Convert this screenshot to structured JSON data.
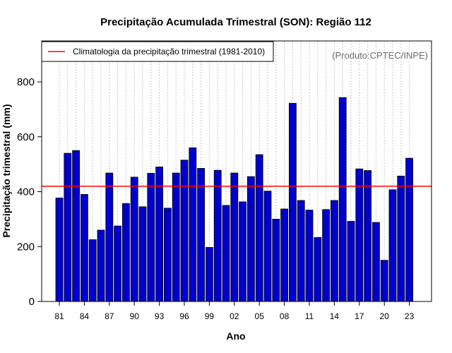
{
  "chart_data": {
    "type": "bar",
    "title": "Precipitação Acumulada Trimestral (SON): Região 112",
    "xlabel": "Ano",
    "ylabel": "Precipitação trimestral (mm)",
    "ylim": [
      0,
      920
    ],
    "yticks": [
      0,
      200,
      400,
      600,
      800
    ],
    "categories": [
      "1981",
      "1982",
      "1983",
      "1984",
      "1985",
      "1986",
      "1987",
      "1988",
      "1989",
      "1990",
      "1991",
      "1992",
      "1993",
      "1994",
      "1995",
      "1996",
      "1997",
      "1998",
      "1999",
      "2000",
      "2001",
      "2002",
      "2003",
      "2004",
      "2005",
      "2006",
      "2007",
      "2008",
      "2009",
      "2010",
      "2011",
      "2012",
      "2013",
      "2014",
      "2015",
      "2016",
      "2017",
      "2018",
      "2019",
      "2020",
      "2021",
      "2022",
      "2023"
    ],
    "x_tick_labels": [
      {
        "index": 0,
        "label": "81"
      },
      {
        "index": 3,
        "label": "84"
      },
      {
        "index": 6,
        "label": "87"
      },
      {
        "index": 9,
        "label": "90"
      },
      {
        "index": 12,
        "label": "93"
      },
      {
        "index": 15,
        "label": "96"
      },
      {
        "index": 18,
        "label": "99"
      },
      {
        "index": 21,
        "label": "02"
      },
      {
        "index": 24,
        "label": "05"
      },
      {
        "index": 27,
        "label": "08"
      },
      {
        "index": 30,
        "label": "11"
      },
      {
        "index": 33,
        "label": "14"
      },
      {
        "index": 36,
        "label": "17"
      },
      {
        "index": 39,
        "label": "20"
      },
      {
        "index": 42,
        "label": "23"
      }
    ],
    "values": [
      377,
      540,
      550,
      390,
      225,
      260,
      468,
      275,
      357,
      453,
      345,
      467,
      490,
      340,
      468,
      515,
      560,
      485,
      197,
      478,
      350,
      468,
      363,
      455,
      535,
      402,
      300,
      337,
      722,
      368,
      333,
      233,
      335,
      368,
      743,
      292,
      483,
      477,
      288,
      150,
      407,
      457,
      522
    ],
    "bar_color": "#0000cd",
    "reference_line": {
      "value": 420,
      "color": "#ff0000",
      "label": "Climatologia da precipitação trimestral (1981-2010)"
    },
    "legend_position": "top-left",
    "grid": "vertical dotted",
    "credit": "(Produto:CPTEC/INPE)"
  }
}
